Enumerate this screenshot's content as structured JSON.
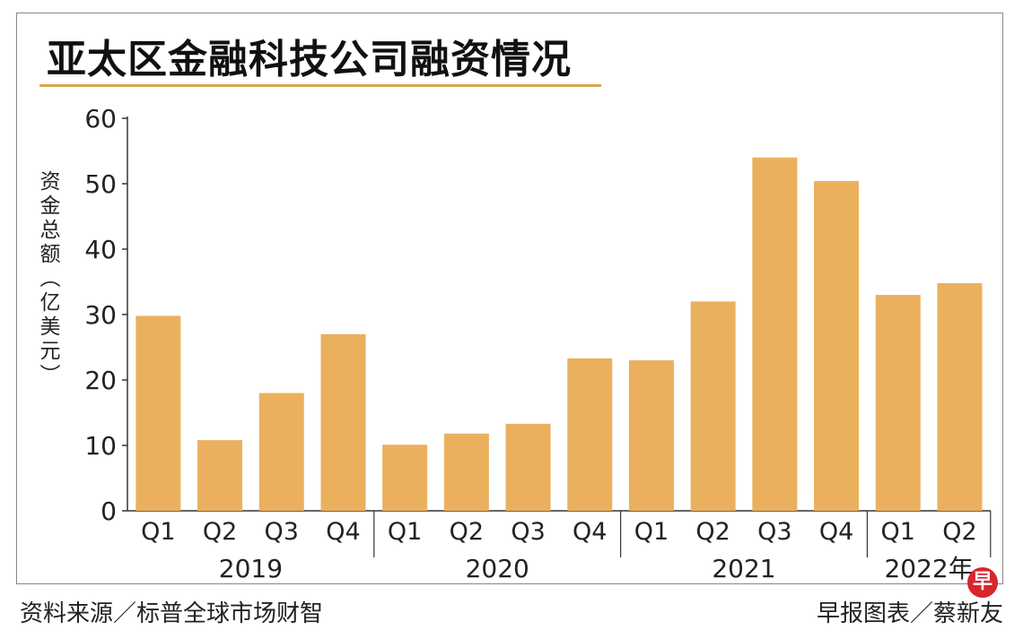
{
  "header": {
    "title": "亚太区金融科技公司融资情况"
  },
  "footer": {
    "source": "资料来源／标普全球市场财智",
    "credit": "早报图表／蔡新友",
    "logo_text": "早"
  },
  "colors": {
    "bar": "#eab05e",
    "rule": "#d9a84f",
    "axis": "#333333",
    "logo": "#d8262e"
  },
  "chart_data": {
    "type": "bar",
    "title": "亚太区金融科技公司融资情况",
    "ylabel": "资金总额（亿美元）",
    "ylim": [
      0,
      60
    ],
    "yticks": [
      0,
      10,
      20,
      30,
      40,
      50,
      60
    ],
    "grid": false,
    "categories": [
      "Q1",
      "Q2",
      "Q3",
      "Q4",
      "Q1",
      "Q2",
      "Q3",
      "Q4",
      "Q1",
      "Q2",
      "Q3",
      "Q4",
      "Q1",
      "Q2"
    ],
    "groups": [
      {
        "label": "2019",
        "count": 4
      },
      {
        "label": "2020",
        "count": 4
      },
      {
        "label": "2021",
        "count": 4
      },
      {
        "label": "2022年",
        "count": 2
      }
    ],
    "values": [
      29.8,
      10.8,
      18,
      27,
      10.1,
      11.8,
      13.3,
      23.3,
      23,
      32,
      54,
      50.4,
      33,
      34.8
    ]
  }
}
